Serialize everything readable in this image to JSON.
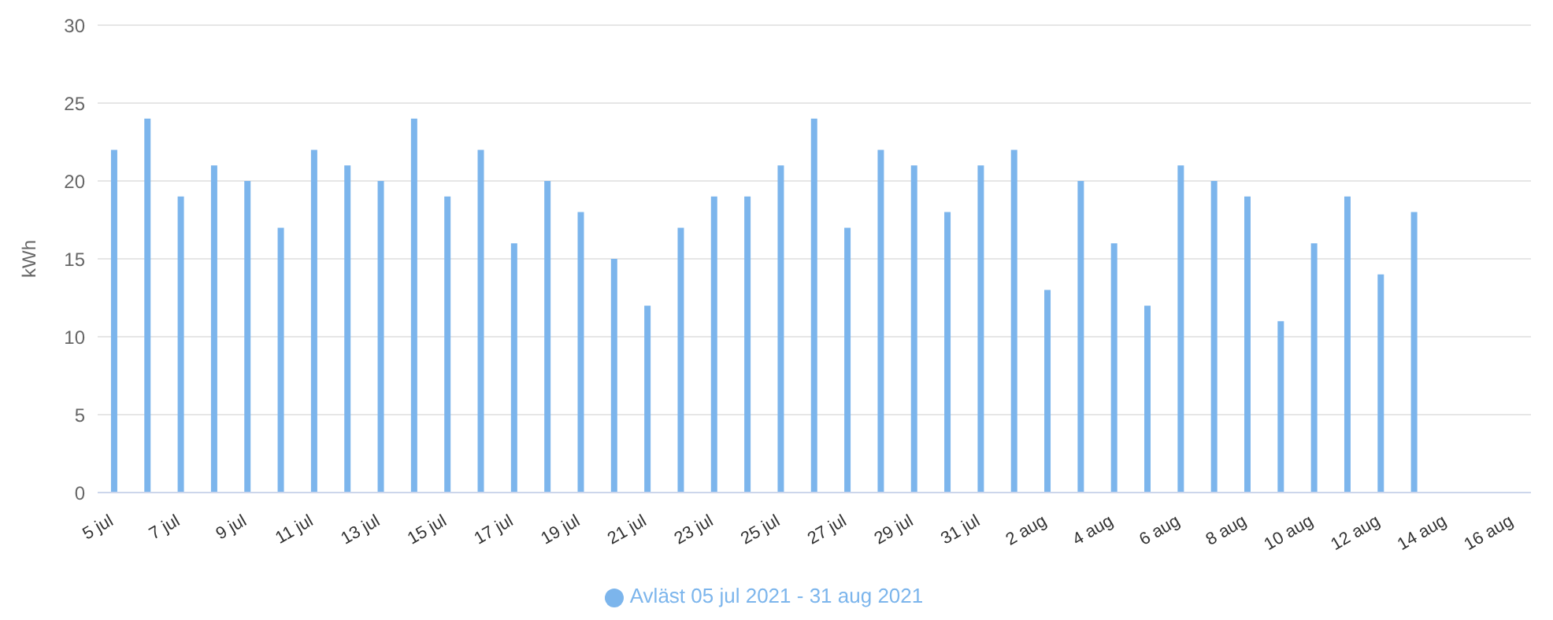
{
  "chart_data": {
    "type": "bar",
    "ylabel": "kWh",
    "categories": [
      "5 jul",
      null,
      "7 jul",
      null,
      "9 jul",
      null,
      "11 jul",
      null,
      "13 jul",
      null,
      "15 jul",
      null,
      "17 jul",
      null,
      "19 jul",
      null,
      "21 jul",
      null,
      "23 jul",
      null,
      "25 jul",
      null,
      "27 jul",
      null,
      "29 jul",
      null,
      "31 jul",
      null,
      "2 aug",
      null,
      "4 aug",
      null,
      "6 aug",
      null,
      "8 aug",
      null,
      "10 aug",
      null,
      "12 aug",
      null,
      "14 aug",
      null,
      "16 aug"
    ],
    "series": [
      {
        "name": "Avläst 05 jul 2021 - 31 aug 2021",
        "color": "#7cb5ec",
        "values": [
          22,
          24,
          19,
          21,
          20,
          17,
          22,
          21,
          20,
          24,
          19,
          22,
          16,
          20,
          18,
          15,
          12,
          17,
          19,
          19,
          21,
          24,
          17,
          22,
          21,
          18,
          21,
          22,
          13,
          20,
          16,
          12,
          21,
          20,
          19,
          11,
          16,
          19,
          14,
          18,
          null,
          null,
          null
        ]
      }
    ],
    "ylim": [
      0,
      30
    ],
    "yticks": [
      0,
      5,
      10,
      15,
      20,
      25,
      30
    ],
    "grid": "y",
    "legend": "bottom"
  }
}
